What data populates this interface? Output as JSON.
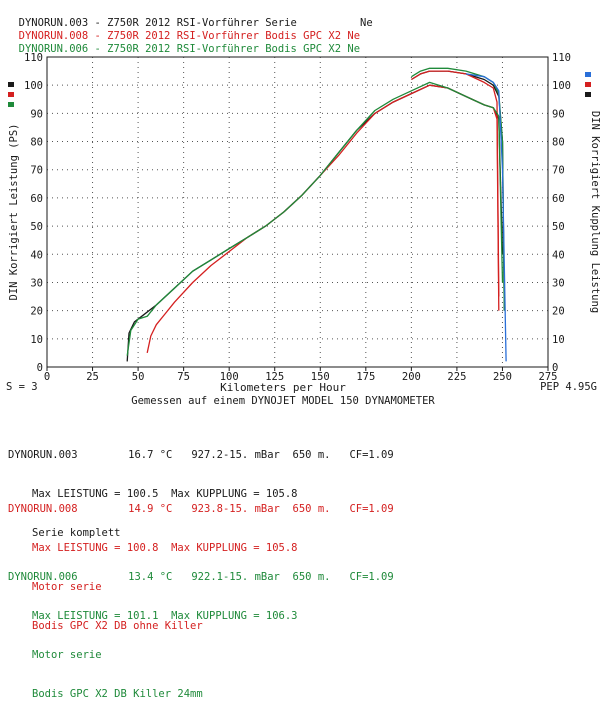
{
  "header": {
    "runs": [
      {
        "id": "DYNORUN.003",
        "desc": " - Z750R 2012 RSI-Vorführer Serie          Ne",
        "color": "#1a1a1a"
      },
      {
        "id": "DYNORUN.008",
        "desc": " - Z750R 2012 RSI-Vorführer Bodis GPC X2 Ne",
        "color": "#d42020"
      },
      {
        "id": "DYNORUN.006",
        "desc": " - Z750R 2012 RSI-Vorführer Bodis GPC X2 Ne",
        "color": "#1f8a3a"
      }
    ]
  },
  "chart_data": {
    "type": "line",
    "title": "",
    "xlabel": "Kilometers per Hour",
    "xlabel2": "Gemessen auf einem DYNOJET MODEL 150 DYNAMOMETER",
    "ylabel_left": "DIN Korrigiert Leistung (PS)",
    "ylabel_right": "DIN Korrigiert Kupplung Leistung",
    "xlim": [
      0,
      275
    ],
    "ylim": [
      0,
      110
    ],
    "xticks": [
      "0",
      "25",
      "50",
      "75",
      "100",
      "125",
      "150",
      "175",
      "200",
      "225",
      "250",
      "275"
    ],
    "yticks": [
      "0",
      "10",
      "20",
      "30",
      "40",
      "50",
      "60",
      "70",
      "80",
      "90",
      "100",
      "110"
    ],
    "grid": true,
    "footer_left": "S = 3",
    "footer_right": "PEP 4.95G",
    "series": [
      {
        "name": "DYNORUN.003 power",
        "color": "#1a1a1a",
        "x": [
          44,
          45,
          48,
          52,
          60,
          70,
          80,
          90,
          100,
          110,
          120,
          130,
          140,
          150,
          160,
          170,
          180,
          190,
          200,
          210,
          220,
          230,
          240,
          245,
          248,
          250
        ],
        "y": [
          2,
          12,
          16,
          18,
          22,
          28,
          34,
          38,
          42,
          46,
          50,
          55,
          61,
          68,
          76,
          84,
          90,
          94,
          97,
          100,
          99,
          96,
          93,
          92,
          88,
          40
        ]
      },
      {
        "name": "DYNORUN.003 kupplung",
        "color": "#1a1a1a",
        "x": [
          200,
          205,
          210,
          220,
          230,
          240,
          245,
          248,
          250,
          251
        ],
        "y": [
          102,
          104,
          105,
          105,
          104,
          102,
          100,
          96,
          80,
          20
        ]
      },
      {
        "name": "DYNORUN.008 power",
        "color": "#d42020",
        "x": [
          55,
          57,
          60,
          65,
          70,
          80,
          90,
          100,
          110,
          120,
          130,
          140,
          150,
          160,
          170,
          180,
          190,
          200,
          210,
          220,
          230,
          240,
          245,
          247,
          248
        ],
        "y": [
          5,
          11,
          15,
          19,
          23,
          30,
          36,
          41,
          46,
          50,
          55,
          61,
          68,
          75,
          83,
          90,
          94,
          97,
          100,
          99,
          96,
          93,
          92,
          88,
          20
        ]
      },
      {
        "name": "DYNORUN.008 kupplung",
        "color": "#d42020",
        "x": [
          200,
          205,
          210,
          220,
          230,
          240,
          245,
          247,
          248
        ],
        "y": [
          102,
          104,
          105,
          105,
          104,
          101,
          99,
          94,
          25
        ]
      },
      {
        "name": "DYNORUN.006 power",
        "color": "#1f8a3a",
        "x": [
          44,
          46,
          50,
          55,
          60,
          70,
          80,
          90,
          100,
          110,
          120,
          130,
          140,
          150,
          160,
          170,
          180,
          190,
          200,
          210,
          220,
          230,
          240,
          245,
          248,
          250
        ],
        "y": [
          4,
          13,
          17,
          18,
          22,
          28,
          34,
          38,
          42,
          46,
          50,
          55,
          61,
          68,
          76,
          84,
          91,
          95,
          98,
          101,
          99,
          96,
          93,
          92,
          89,
          30
        ]
      },
      {
        "name": "DYNORUN.006 kupplung",
        "color": "#1f8a3a",
        "x": [
          200,
          205,
          210,
          220,
          230,
          240,
          245,
          248,
          250,
          251
        ],
        "y": [
          103,
          105,
          106,
          106,
          105,
          103,
          101,
          97,
          80,
          20
        ]
      },
      {
        "name": "blue kupplung",
        "color": "#2a6fd8",
        "x": [
          230,
          240,
          245,
          248,
          250,
          252
        ],
        "y": [
          104,
          103,
          101,
          98,
          70,
          2
        ]
      }
    ]
  },
  "legend_colors": [
    "#2a6fd8",
    "#d42020",
    "#1f8a3a",
    "#1a1a1a"
  ],
  "runs": [
    {
      "title": "DYNORUN.003",
      "temp": "16.7 °C",
      "baro": "927.2-15. mBar",
      "alt": "650 m.",
      "cf": "CF=1.09",
      "max": "Max LEISTUNG = 100.5  Max KUPPLUNG = 105.8",
      "note1": "Serie komplett",
      "note2": "",
      "color": "#1a1a1a"
    },
    {
      "title": "DYNORUN.008",
      "temp": "14.9 °C",
      "baro": "923.8-15. mBar",
      "alt": "650 m.",
      "cf": "CF=1.09",
      "max": "Max LEISTUNG = 100.8  Max KUPPLUNG = 105.8",
      "note1": "Motor serie",
      "note2": "Bodis GPC X2 DB ohne Killer",
      "color": "#d42020"
    },
    {
      "title": "DYNORUN.006",
      "temp": "13.4 °C",
      "baro": "922.1-15. mBar",
      "alt": "650 m.",
      "cf": "CF=1.09",
      "max": "Max LEISTUNG = 101.1  Max KUPPLUNG = 106.3",
      "note1": "Motor serie",
      "note2": "Bodis GPC X2 DB Killer 24mm",
      "color": "#1f8a3a"
    }
  ]
}
